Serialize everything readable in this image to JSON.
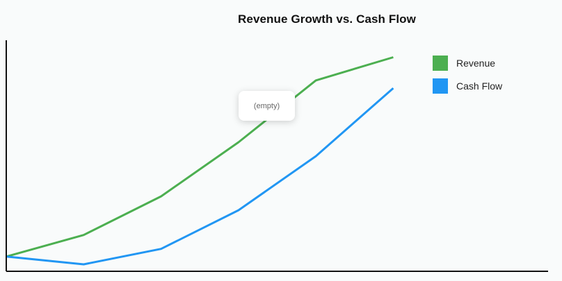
{
  "chart_data": {
    "type": "line",
    "title": "Revenue Growth vs. Cash Flow",
    "xlabel": "",
    "ylabel": "",
    "x": [
      0,
      1,
      2,
      3,
      4,
      5
    ],
    "series": [
      {
        "name": "Revenue",
        "color": "#4caf50",
        "values": [
          0,
          14,
          39,
          74,
          114,
          129
        ]
      },
      {
        "name": "Cash Flow",
        "color": "#2196f3",
        "values": [
          0,
          -5,
          5,
          30,
          65,
          109
        ]
      }
    ],
    "xlim": [
      0,
      7
    ],
    "ylim": [
      -9.5,
      140
    ],
    "grid": false,
    "legend": "top-right"
  },
  "tooltip": {
    "text": "(empty)"
  }
}
